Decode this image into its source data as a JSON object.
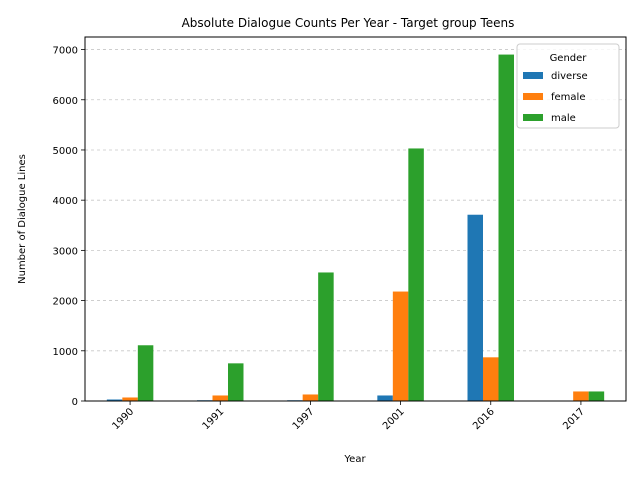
{
  "chart_data": {
    "type": "bar",
    "title": "Absolute Dialogue Counts Per Year - Target group Teens",
    "xlabel": "Year",
    "ylabel": "Number of Dialogue Lines",
    "categories": [
      "1990",
      "1991",
      "1997",
      "2001",
      "2016",
      "2017"
    ],
    "series": [
      {
        "name": "diverse",
        "color": "#1f77b4",
        "values": [
          30,
          15,
          15,
          110,
          3710,
          0
        ]
      },
      {
        "name": "female",
        "color": "#ff7f0e",
        "values": [
          70,
          110,
          130,
          2180,
          870,
          190
        ]
      },
      {
        "name": "male",
        "color": "#2ca02c",
        "values": [
          1110,
          750,
          2560,
          5030,
          6900,
          190
        ]
      }
    ],
    "ylim": [
      0,
      7250
    ],
    "yticks": [
      0,
      1000,
      2000,
      3000,
      4000,
      5000,
      6000,
      7000
    ],
    "grid": "y-dashed",
    "xtick_rotation": 45,
    "legend": {
      "title": "Gender",
      "placement": "top-right"
    }
  }
}
